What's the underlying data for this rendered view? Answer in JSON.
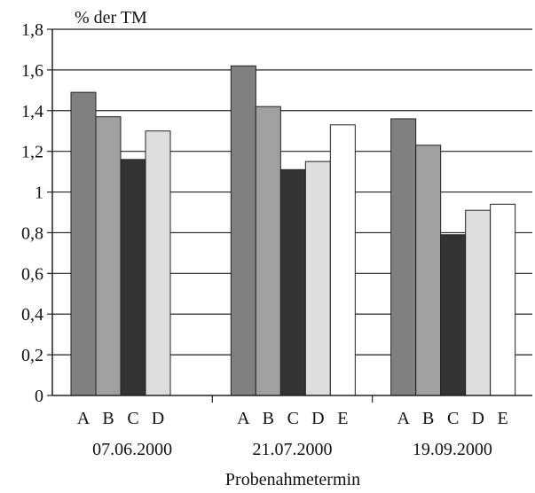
{
  "chart_data": {
    "type": "bar",
    "unit_label": "% der TM",
    "xlabel": "Probenahmetermin",
    "ylim": [
      0,
      1.8
    ],
    "yticks": [
      "0",
      "0,2",
      "0,4",
      "0,6",
      "0,8",
      "1",
      "1,2",
      "1,4",
      "1,6",
      "1,8"
    ],
    "grid": true,
    "groups": [
      {
        "date": "07.06.2000",
        "bars": [
          {
            "label": "A",
            "value": 1.49,
            "color": "#808080"
          },
          {
            "label": "B",
            "value": 1.37,
            "color": "#a0a0a0"
          },
          {
            "label": "C",
            "value": 1.16,
            "color": "#333333"
          },
          {
            "label": "D",
            "value": 1.3,
            "color": "#dddddd"
          }
        ]
      },
      {
        "date": "21.07.2000",
        "bars": [
          {
            "label": "A",
            "value": 1.62,
            "color": "#808080"
          },
          {
            "label": "B",
            "value": 1.42,
            "color": "#a0a0a0"
          },
          {
            "label": "C",
            "value": 1.11,
            "color": "#333333"
          },
          {
            "label": "D",
            "value": 1.15,
            "color": "#dddddd"
          },
          {
            "label": "E",
            "value": 1.33,
            "color": "#ffffff"
          }
        ]
      },
      {
        "date": "19.09.2000",
        "bars": [
          {
            "label": "A",
            "value": 1.36,
            "color": "#808080"
          },
          {
            "label": "B",
            "value": 1.23,
            "color": "#a0a0a0"
          },
          {
            "label": "C",
            "value": 0.79,
            "color": "#333333"
          },
          {
            "label": "D",
            "value": 0.91,
            "color": "#dddddd"
          },
          {
            "label": "E",
            "value": 0.94,
            "color": "#ffffff"
          }
        ]
      }
    ]
  }
}
